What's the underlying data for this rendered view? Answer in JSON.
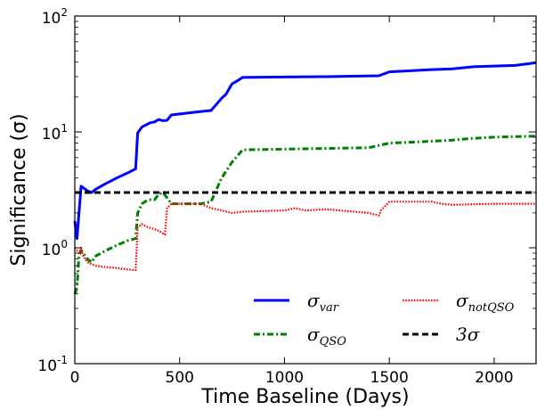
{
  "chart_data": {
    "type": "line",
    "xlabel": "Time Baseline (Days)",
    "ylabel": "Significance (σ)",
    "xlim": [
      0,
      2200
    ],
    "ylim": [
      0.1,
      100
    ],
    "yscale": "log",
    "xticks": [
      0,
      500,
      1000,
      1500,
      2000
    ],
    "xtick_labels": [
      "0",
      "500",
      "1000",
      "1500",
      "2000"
    ],
    "yticks": [
      0.1,
      1,
      10,
      100
    ],
    "ytick_labels": [
      {
        "base": "10",
        "exp": "-1"
      },
      {
        "base": "10",
        "exp": "0"
      },
      {
        "base": "10",
        "exp": "1"
      },
      {
        "base": "10",
        "exp": "2"
      }
    ],
    "grid": false,
    "legend": {
      "location": "lower-right",
      "columns": 2
    },
    "series": [
      {
        "name": {
          "base": "σ",
          "sub": "var"
        },
        "color": "#0000ff",
        "style": "solid",
        "x": [
          0,
          10,
          20,
          30,
          40,
          60,
          80,
          100,
          150,
          200,
          260,
          290,
          300,
          320,
          340,
          360,
          380,
          400,
          420,
          440,
          460,
          600,
          650,
          700,
          720,
          750,
          780,
          800,
          1000,
          1200,
          1450,
          1500,
          1700,
          1800,
          1900,
          2000,
          2100,
          2200
        ],
        "y": [
          1.7,
          1.2,
          2.0,
          3.4,
          3.3,
          3.1,
          3.0,
          3.2,
          3.6,
          4.0,
          4.5,
          4.8,
          9.8,
          11.0,
          11.5,
          12.0,
          12.2,
          12.8,
          12.5,
          12.6,
          14.0,
          15.0,
          15.3,
          19.5,
          21.0,
          26.0,
          28.0,
          29.5,
          29.8,
          30.0,
          30.5,
          33.0,
          34.5,
          35.0,
          36.5,
          37.0,
          37.5,
          39.5
        ]
      },
      {
        "name": {
          "base": "σ",
          "sub": "QSO"
        },
        "color": "#008000",
        "style": "dashdot",
        "x": [
          0,
          10,
          20,
          30,
          40,
          60,
          80,
          100,
          150,
          200,
          250,
          290,
          300,
          320,
          350,
          380,
          400,
          420,
          440,
          460,
          600,
          650,
          700,
          750,
          800,
          1000,
          1200,
          1400,
          1500,
          1700,
          1800,
          1900,
          2000,
          2100,
          2200
        ],
        "y": [
          0.4,
          0.45,
          0.85,
          0.95,
          0.9,
          0.8,
          0.75,
          0.85,
          0.95,
          1.05,
          1.15,
          1.2,
          2.0,
          2.4,
          2.6,
          2.6,
          2.9,
          3.0,
          2.7,
          2.4,
          2.4,
          2.5,
          4.0,
          5.5,
          7.0,
          7.1,
          7.2,
          7.3,
          8.0,
          8.3,
          8.5,
          8.8,
          9.0,
          9.1,
          9.2
        ]
      },
      {
        "name": {
          "base": "σ",
          "sub": "notQSO"
        },
        "color": "#ff0000",
        "style": "dotted",
        "x": [
          0,
          10,
          20,
          30,
          40,
          60,
          80,
          100,
          150,
          200,
          250,
          290,
          300,
          320,
          350,
          380,
          400,
          430,
          440,
          460,
          600,
          650,
          700,
          750,
          800,
          1000,
          1050,
          1100,
          1200,
          1400,
          1450,
          1460,
          1500,
          1700,
          1750,
          1800,
          2000,
          2200
        ],
        "y": [
          1.0,
          0.95,
          0.9,
          1.0,
          0.85,
          0.75,
          0.72,
          0.7,
          0.68,
          0.67,
          0.65,
          0.64,
          1.5,
          1.6,
          1.5,
          1.45,
          1.4,
          1.3,
          2.2,
          2.4,
          2.4,
          2.2,
          2.1,
          2.0,
          2.05,
          2.1,
          2.2,
          2.1,
          2.15,
          2.0,
          1.9,
          2.1,
          2.5,
          2.5,
          2.4,
          2.35,
          2.4,
          2.4
        ]
      },
      {
        "name": {
          "base": "3σ",
          "sub": ""
        },
        "color": "#000000",
        "style": "dashed",
        "x": [
          0,
          2200
        ],
        "y": [
          3,
          3
        ]
      }
    ]
  }
}
